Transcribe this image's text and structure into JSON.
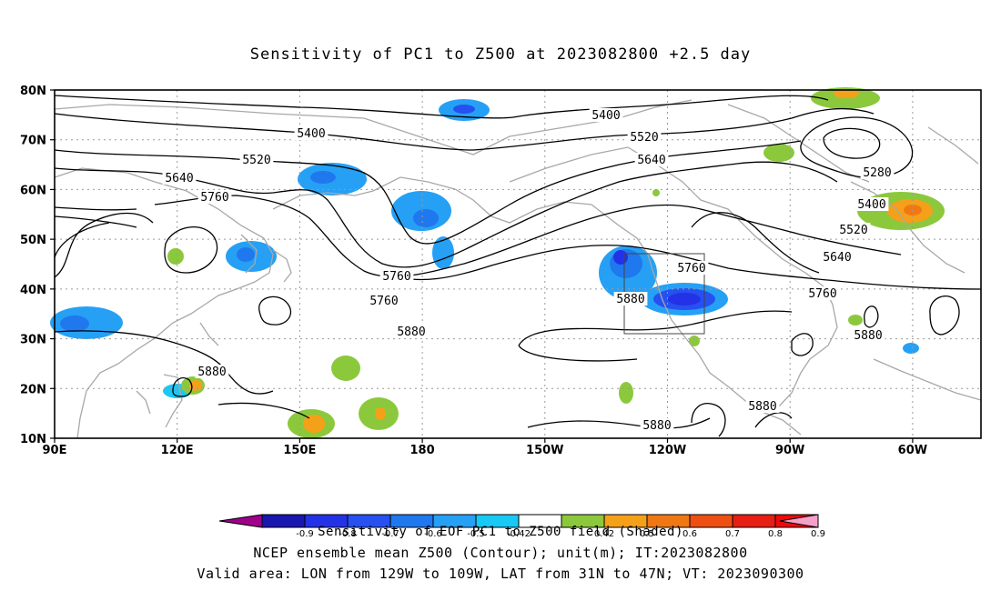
{
  "title": "Sensitivity of PC1 to Z500 at 2023082800 +2.5 day",
  "lat_labels": [
    "80N",
    "70N",
    "60N",
    "50N",
    "40N",
    "30N",
    "20N",
    "10N"
  ],
  "lon_labels": [
    "90E",
    "120E",
    "150E",
    "180",
    "150W",
    "120W",
    "90W",
    "60W"
  ],
  "contour_labels": [
    "5400",
    "5520",
    "5640",
    "5760",
    "5760",
    "5400",
    "5520",
    "5640",
    "5760",
    "5880",
    "5880",
    "5880",
    "5280",
    "5400",
    "5520",
    "5640",
    "5760",
    "5760",
    "5880",
    "5880",
    "5880"
  ],
  "colorbar": {
    "tick_labels": [
      "-0.9",
      "-0.8",
      "-0.7",
      "-0.6",
      "-0.5",
      "-0.42",
      "0.42",
      "0.5",
      "0.6",
      "0.7",
      "0.8",
      "0.9"
    ],
    "colors": [
      "#a0008c",
      "#1a16b0",
      "#2332e6",
      "#2650f0",
      "#1f78ee",
      "#26a0f5",
      "#18c8f5",
      "#ffffff",
      "#8cc83c",
      "#f5a019",
      "#f07814",
      "#ee5014",
      "#e61e14",
      "#ee0a0a",
      "#f5a0c8"
    ],
    "title": "Sensitivity of EOF PC1 to Z500 field (Shaded)"
  },
  "footer": {
    "line2": "NCEP ensemble mean Z500 (Contour); unit(m); IT:2023082800",
    "line3": "Valid area: LON from 129W to 109W, LAT from 31N to 47N; VT: 2023090300"
  },
  "valid_area": {
    "lon_from": "129W",
    "lon_to": "109W",
    "lat_from": "31N",
    "lat_to": "47N"
  },
  "colors": {
    "contour": "#000000",
    "coast": "#a8a8a8",
    "grid": "#9a9a9a"
  }
}
